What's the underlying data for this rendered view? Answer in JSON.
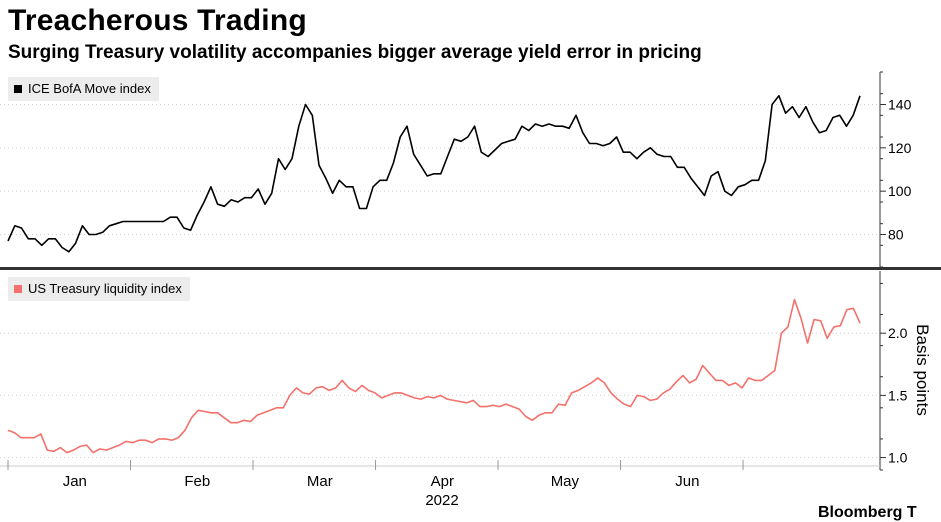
{
  "title": "Treacherous Trading",
  "subtitle": "Surging Treasury volatility accompanies bigger average yield error in pricing",
  "source": "Bloomberg T",
  "chart_data": [
    {
      "type": "line",
      "legend": "ICE BofA Move index",
      "color": "#000000",
      "y_ticks": [
        80,
        100,
        120,
        140
      ],
      "y_tick_labels": [
        "80",
        "100",
        "120",
        "140"
      ],
      "ylim": [
        65,
        155
      ],
      "x_range": [
        0,
        153
      ],
      "values": [
        77,
        84,
        83,
        78,
        78,
        75,
        78,
        78,
        74,
        72,
        76,
        84,
        80,
        80,
        81,
        84,
        85,
        86,
        86,
        86,
        86,
        86,
        86,
        86,
        88,
        88,
        83,
        82,
        89,
        95,
        102,
        94,
        93,
        96,
        95,
        97,
        97,
        101,
        94,
        99,
        115,
        110,
        115,
        130,
        140,
        135,
        112,
        106,
        99,
        105,
        102,
        102,
        92,
        92,
        102,
        105,
        105,
        113,
        125,
        130,
        117,
        112,
        107,
        108,
        108,
        116,
        124,
        123,
        125,
        130,
        118,
        116,
        119,
        122,
        123,
        124,
        130,
        128,
        131,
        130,
        131,
        130,
        130,
        129,
        135,
        127,
        122,
        122,
        121,
        122,
        125,
        118,
        118,
        115,
        118,
        120,
        117,
        116,
        116,
        111,
        111,
        106,
        102,
        98,
        107,
        109,
        100,
        98,
        102,
        103,
        105,
        105,
        114,
        140,
        144,
        136,
        139,
        134,
        139,
        132,
        127,
        128,
        134,
        135,
        130,
        135,
        144
      ]
    },
    {
      "type": "line",
      "legend": "US Treasury liquidity index",
      "ylabel": "Basis points",
      "color": "#f4716b",
      "y_ticks": [
        1.0,
        1.5,
        2.0
      ],
      "y_tick_labels": [
        "1.0",
        "1.5",
        "2.0"
      ],
      "ylim": [
        0.9,
        2.5
      ],
      "x_range": [
        0,
        153
      ],
      "values": [
        1.22,
        1.2,
        1.16,
        1.16,
        1.16,
        1.19,
        1.06,
        1.05,
        1.08,
        1.04,
        1.06,
        1.09,
        1.1,
        1.04,
        1.07,
        1.06,
        1.08,
        1.1,
        1.13,
        1.12,
        1.14,
        1.14,
        1.12,
        1.15,
        1.15,
        1.14,
        1.16,
        1.22,
        1.32,
        1.38,
        1.37,
        1.36,
        1.36,
        1.32,
        1.28,
        1.28,
        1.3,
        1.29,
        1.34,
        1.36,
        1.38,
        1.4,
        1.4,
        1.5,
        1.56,
        1.52,
        1.51,
        1.56,
        1.57,
        1.54,
        1.56,
        1.62,
        1.56,
        1.53,
        1.58,
        1.54,
        1.52,
        1.48,
        1.5,
        1.52,
        1.52,
        1.5,
        1.48,
        1.47,
        1.49,
        1.48,
        1.5,
        1.47,
        1.46,
        1.45,
        1.44,
        1.46,
        1.41,
        1.41,
        1.42,
        1.41,
        1.43,
        1.41,
        1.39,
        1.33,
        1.3,
        1.34,
        1.36,
        1.36,
        1.43,
        1.42,
        1.52,
        1.54,
        1.57,
        1.6,
        1.64,
        1.6,
        1.52,
        1.47,
        1.43,
        1.41,
        1.5,
        1.49,
        1.46,
        1.47,
        1.52,
        1.55,
        1.61,
        1.66,
        1.6,
        1.63,
        1.74,
        1.68,
        1.62,
        1.62,
        1.58,
        1.6,
        1.56,
        1.64,
        1.62,
        1.62,
        1.66,
        1.7,
        2.0,
        2.05,
        2.27,
        2.12,
        1.92,
        2.11,
        2.1,
        1.96,
        2.05,
        2.06,
        2.19,
        2.2,
        2.08
      ]
    }
  ],
  "x_axis": {
    "months": [
      "Jan",
      "Feb",
      "Mar",
      "Apr",
      "May",
      "Jun"
    ],
    "month_positions": [
      12,
      34,
      56,
      78,
      100,
      122
    ],
    "month_boundaries": [
      0,
      22,
      44,
      66,
      88,
      110,
      132
    ],
    "year_label": "2022"
  }
}
